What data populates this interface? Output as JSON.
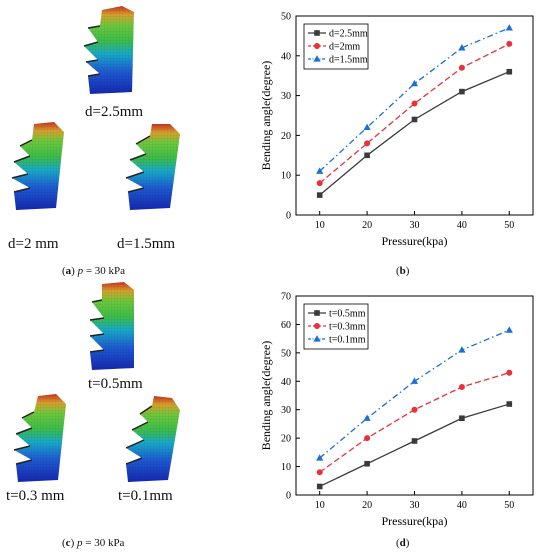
{
  "panel_a": {
    "labels": [
      "d=2.5mm",
      "d=2 mm",
      "d=1.5mm"
    ],
    "caption": {
      "letter": "a",
      "var": "p",
      "rest": " = 30 kPa"
    }
  },
  "panel_c": {
    "labels": [
      "t=0.5mm",
      "t=0.3 mm",
      "t=0.1mm"
    ],
    "caption": {
      "letter": "c",
      "var": "p",
      "rest": " = 30 kPa"
    }
  },
  "captions": {
    "b": "b",
    "d": "d"
  },
  "colors": {
    "s1": "#3a3a3a",
    "s2": "#e8313a",
    "s3": "#1a6fd6",
    "blue": "#1e3fb8",
    "green": "#3cba3c",
    "red": "#c8321e"
  },
  "chart_data": [
    {
      "type": "line",
      "x": [
        10,
        20,
        30,
        40,
        50
      ],
      "xlabel": "Pressure(kpa)",
      "ylabel": "Bending angle(degree)",
      "xticks": [
        10,
        20,
        30,
        40,
        50
      ],
      "yticks": [
        0,
        10,
        20,
        30,
        40,
        50
      ],
      "xlim": [
        5,
        55
      ],
      "ylim": [
        0,
        50
      ],
      "legend": "top-left",
      "series": [
        {
          "name": "d=2.5mm",
          "values": [
            5,
            15,
            24,
            31,
            36
          ],
          "color": "#3a3a3a",
          "marker": "square",
          "dash": "solid"
        },
        {
          "name": "d=2mm",
          "values": [
            8,
            18,
            28,
            37,
            43
          ],
          "color": "#e8313a",
          "marker": "circle",
          "dash": "dash"
        },
        {
          "name": "d=1.5mm",
          "values": [
            11,
            22,
            33,
            42,
            47
          ],
          "color": "#1a6fd6",
          "marker": "triangle",
          "dash": "dashdot"
        }
      ]
    },
    {
      "type": "line",
      "x": [
        10,
        20,
        30,
        40,
        50
      ],
      "xlabel": "Pressure(kpa)",
      "ylabel": "Bending angle(degree)",
      "xticks": [
        10,
        20,
        30,
        40,
        50
      ],
      "yticks": [
        0,
        10,
        20,
        30,
        40,
        50,
        60,
        70
      ],
      "xlim": [
        5,
        55
      ],
      "ylim": [
        0,
        70
      ],
      "legend": "top-left",
      "series": [
        {
          "name": "t=0.5mm",
          "values": [
            3,
            11,
            19,
            27,
            32
          ],
          "color": "#3a3a3a",
          "marker": "square",
          "dash": "solid"
        },
        {
          "name": "t=0.3mm",
          "values": [
            8,
            20,
            30,
            38,
            43
          ],
          "color": "#e8313a",
          "marker": "circle",
          "dash": "dash"
        },
        {
          "name": "t=0.1mm",
          "values": [
            13,
            27,
            40,
            51,
            58
          ],
          "color": "#1a6fd6",
          "marker": "triangle",
          "dash": "dashdot"
        }
      ]
    }
  ]
}
